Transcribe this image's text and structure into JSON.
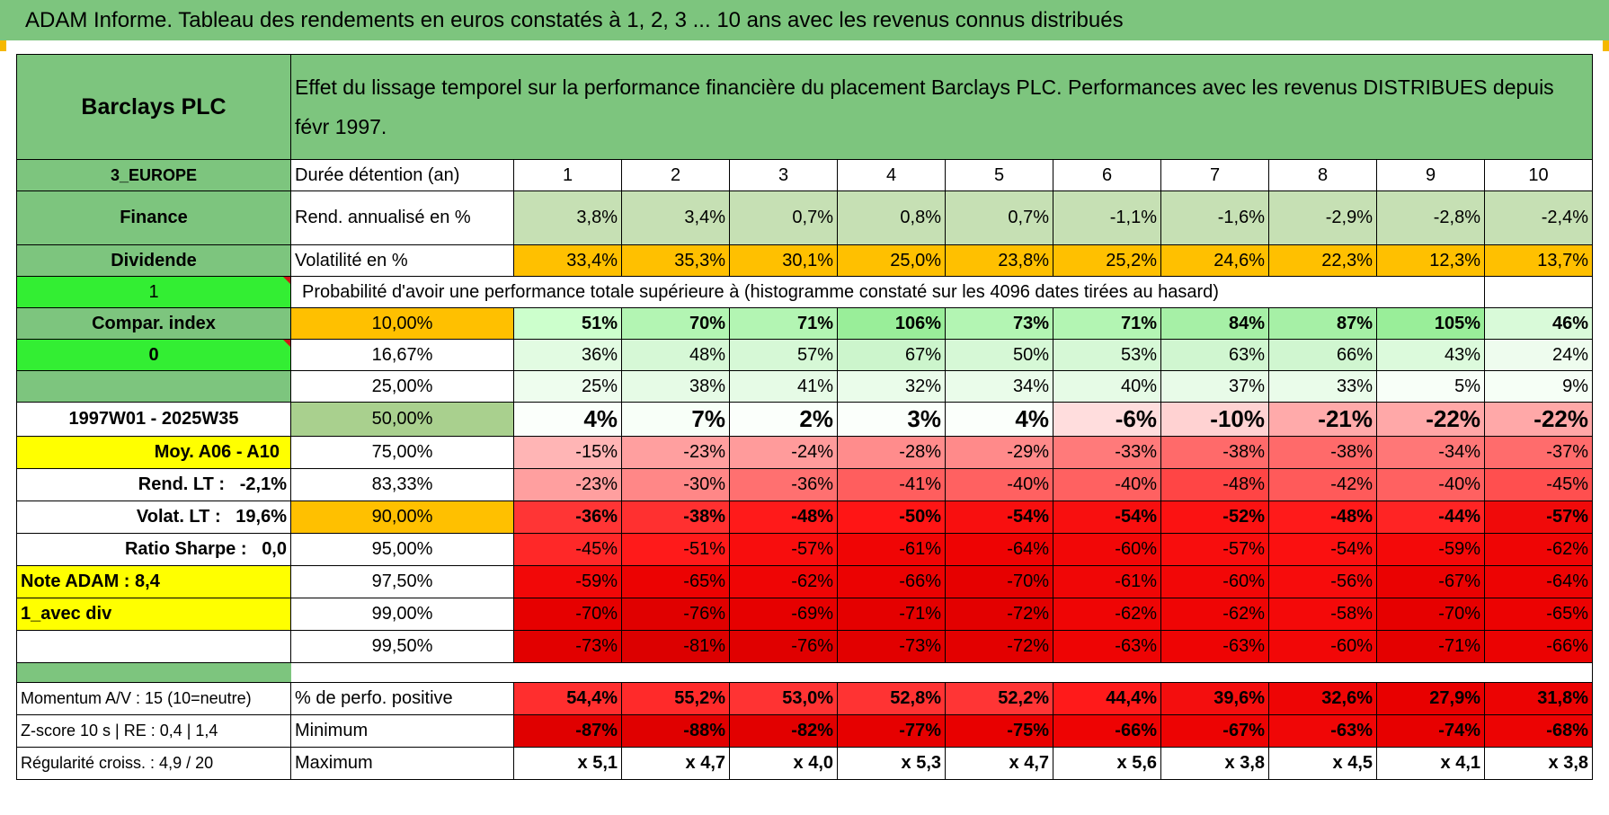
{
  "title": "ADAM Informe. Tableau des rendements en euros constatés à 1, 2, 3 ... 10 ans avec les revenus connus distribués",
  "header": {
    "asset": "Barclays PLC",
    "description": "Effet du lissage temporel sur la performance financière du placement Barclays PLC. Performances avec les revenus DISTRIBUES depuis févr 1997."
  },
  "left_panel": {
    "region": "3_EUROPE",
    "sector": "Finance",
    "type": "Dividende",
    "selector_1": "1",
    "compar_index": "Compar. index",
    "selector_2": "0",
    "period": "1997W01 - 2025W35",
    "moy": "Moy. A06 - A10",
    "rend_lt_label": "Rend. LT :",
    "rend_lt_value": "-2,1%",
    "volat_lt_label": "Volat. LT :",
    "volat_lt_value": "19,6%",
    "sharpe_label": "Ratio Sharpe :",
    "sharpe_value": "0,0",
    "note": "Note ADAM : 8,4",
    "mode": "1_avec div",
    "momentum": "Momentum A/V : 15 (10=neutre)",
    "zscore": "Z-score 10 s | RE : 0,4 | 1,4",
    "regularite": "Régularité croiss. : 4,9 / 20"
  },
  "table": {
    "duration_label": "Durée détention (an)",
    "years": [
      "1",
      "2",
      "3",
      "4",
      "5",
      "6",
      "7",
      "8",
      "9",
      "10"
    ],
    "rend_label": "Rend. annualisé en %",
    "rend": [
      "3,8%",
      "3,4%",
      "0,7%",
      "0,8%",
      "0,7%",
      "-1,1%",
      "-1,6%",
      "-2,9%",
      "-2,8%",
      "-2,4%"
    ],
    "vol_label": "Volatilité en %",
    "vol": [
      "33,4%",
      "35,3%",
      "30,1%",
      "25,0%",
      "23,8%",
      "25,2%",
      "24,6%",
      "22,3%",
      "12,3%",
      "13,7%"
    ],
    "prob_label": "Probabilité d'avoir une performance totale supérieure à (histogramme constaté sur les 4096 dates tirées au hasard)",
    "quantiles": [
      {
        "label": "10,00%",
        "values": [
          "51%",
          "70%",
          "71%",
          "106%",
          "73%",
          "71%",
          "84%",
          "87%",
          "105%",
          "46%"
        ],
        "colors": [
          "#ccffcc",
          "#b3f5b3",
          "#b3f5b3",
          "#99ee99",
          "#b3f5b3",
          "#b3f5b3",
          "#a6f0a6",
          "#a6f0a6",
          "#99ee99",
          "#d9fad9"
        ]
      },
      {
        "label": "16,67%",
        "values": [
          "36%",
          "48%",
          "57%",
          "67%",
          "50%",
          "53%",
          "63%",
          "66%",
          "43%",
          "24%"
        ],
        "colors": [
          "#e2fbe2",
          "#d6f8d6",
          "#d6f8d6",
          "#ccf5cc",
          "#d6f8d6",
          "#d6f8d6",
          "#d0f6d0",
          "#d0f6d0",
          "#dcfadc",
          "#eefcee"
        ]
      },
      {
        "label": "25,00%",
        "values": [
          "25%",
          "38%",
          "41%",
          "32%",
          "34%",
          "40%",
          "37%",
          "33%",
          "5%",
          "9%"
        ],
        "colors": [
          "#eefdee",
          "#e6fbe6",
          "#e6fbe6",
          "#eafcea",
          "#eafcea",
          "#e6fbe6",
          "#e8fbe8",
          "#eafcea",
          "#f8fff8",
          "#f6fff6"
        ]
      },
      {
        "label": "50,00%",
        "values": [
          "4%",
          "7%",
          "2%",
          "3%",
          "4%",
          "-6%",
          "-10%",
          "-21%",
          "-22%",
          "-22%"
        ],
        "colors": [
          "#fbfffb",
          "#f8fff8",
          "#fbfffb",
          "#fbfffb",
          "#fbfffb",
          "#ffdddd",
          "#ffd2d2",
          "#ffaaaa",
          "#ffa8a8",
          "#ffa8a8"
        ]
      },
      {
        "label": "75,00%",
        "values": [
          "-15%",
          "-23%",
          "-24%",
          "-28%",
          "-29%",
          "-33%",
          "-38%",
          "-38%",
          "-34%",
          "-37%"
        ],
        "colors": [
          "#ffb5b5",
          "#ff9f9f",
          "#ff9b9b",
          "#ff8c8c",
          "#ff8a8a",
          "#ff7a7a",
          "#ff6a6a",
          "#ff6a6a",
          "#ff7777",
          "#ff6c6c"
        ]
      },
      {
        "label": "83,33%",
        "values": [
          "-23%",
          "-30%",
          "-36%",
          "-41%",
          "-40%",
          "-40%",
          "-48%",
          "-42%",
          "-40%",
          "-45%"
        ],
        "colors": [
          "#ff9f9f",
          "#ff8787",
          "#ff7070",
          "#ff5e5e",
          "#ff6161",
          "#ff6161",
          "#ff4545",
          "#ff5a5a",
          "#ff6161",
          "#ff4f4f"
        ]
      },
      {
        "label": "90,00%",
        "values": [
          "-36%",
          "-38%",
          "-48%",
          "-50%",
          "-54%",
          "-54%",
          "-52%",
          "-48%",
          "-44%",
          "-57%"
        ],
        "colors": [
          "#ff3535",
          "#ff3030",
          "#ff1a1a",
          "#ff1515",
          "#f80f0f",
          "#f80f0f",
          "#fb1212",
          "#ff1a1a",
          "#ff2424",
          "#f00a0a"
        ]
      },
      {
        "label": "95,00%",
        "values": [
          "-45%",
          "-51%",
          "-57%",
          "-61%",
          "-64%",
          "-60%",
          "-57%",
          "-54%",
          "-59%",
          "-62%"
        ],
        "colors": [
          "#ff2828",
          "#ff1a1a",
          "#f80d0d",
          "#f00505",
          "#ee0303",
          "#f20707",
          "#f80d0d",
          "#fb1010",
          "#f40909",
          "#ef0505"
        ]
      },
      {
        "label": "97,50%",
        "values": [
          "-59%",
          "-65%",
          "-62%",
          "-66%",
          "-70%",
          "-61%",
          "-60%",
          "-56%",
          "-67%",
          "-64%"
        ],
        "colors": [
          "#f20808",
          "#ec0202",
          "#ef0505",
          "#eb0202",
          "#e60000",
          "#f00606",
          "#f20707",
          "#f70c0c",
          "#ea0202",
          "#ed0303"
        ]
      },
      {
        "label": "99,00%",
        "values": [
          "-70%",
          "-76%",
          "-69%",
          "-71%",
          "-72%",
          "-62%",
          "-62%",
          "-58%",
          "-70%",
          "-65%"
        ],
        "colors": [
          "#e60000",
          "#e00000",
          "#e60000",
          "#e40000",
          "#e30000",
          "#ef0505",
          "#ef0505",
          "#f40909",
          "#e60000",
          "#ec0202"
        ]
      },
      {
        "label": "99,50%",
        "values": [
          "-73%",
          "-81%",
          "-76%",
          "-73%",
          "-72%",
          "-63%",
          "-63%",
          "-60%",
          "-71%",
          "-66%"
        ],
        "colors": [
          "#e20000",
          "#dc0000",
          "#e00000",
          "#e20000",
          "#e30000",
          "#ee0404",
          "#ee0404",
          "#f20707",
          "#e40000",
          "#eb0202"
        ]
      }
    ],
    "pos_label": "% de perfo. positive",
    "pos": [
      "54,4%",
      "55,2%",
      "53,0%",
      "52,8%",
      "52,2%",
      "44,4%",
      "39,6%",
      "32,6%",
      "27,9%",
      "31,8%"
    ],
    "pos_colors": [
      "#ff2e2e",
      "#ff2a2a",
      "#ff3333",
      "#ff3333",
      "#ff3535",
      "#ff1a1a",
      "#f40e0e",
      "#ee0505",
      "#e80000",
      "#ec0303"
    ],
    "min_label": "Minimum",
    "min": [
      "-87%",
      "-88%",
      "-82%",
      "-77%",
      "-75%",
      "-66%",
      "-67%",
      "-63%",
      "-74%",
      "-68%"
    ],
    "min_colors": [
      "#e00000",
      "#e00000",
      "#e20000",
      "#e60000",
      "#e80000",
      "#ee0303",
      "#ed0303",
      "#f00606",
      "#e70000",
      "#ec0303"
    ],
    "max_label": "Maximum",
    "max": [
      "x 5,1",
      "x 4,7",
      "x 4,0",
      "x 5,3",
      "x 4,7",
      "x 5,6",
      "x 3,8",
      "x 4,5",
      "x 4,1",
      "x 3,8"
    ]
  }
}
